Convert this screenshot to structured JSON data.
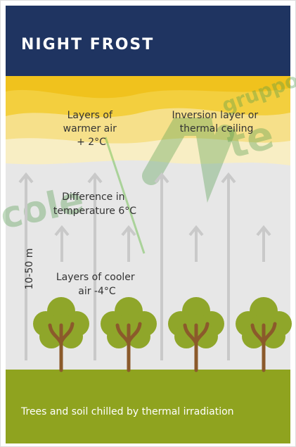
{
  "header": {
    "title": "NIGHT FROST"
  },
  "labels": {
    "warmer": {
      "lines": [
        "Layers of",
        "warmer air",
        "+ 2°C"
      ]
    },
    "inversion": {
      "lines": [
        "Inversion layer or",
        "thermal ceiling"
      ]
    },
    "difference": {
      "lines": [
        "Difference in",
        "temperature 6°C"
      ]
    },
    "height": "10-50 m",
    "cooler": {
      "lines": [
        "Layers of cooler",
        "air -4°C"
      ]
    }
  },
  "footer": {
    "caption": "Trees and soil chilled by thermal irradiation"
  },
  "watermark": [
    "cole",
    "gruppo",
    "te"
  ]
}
